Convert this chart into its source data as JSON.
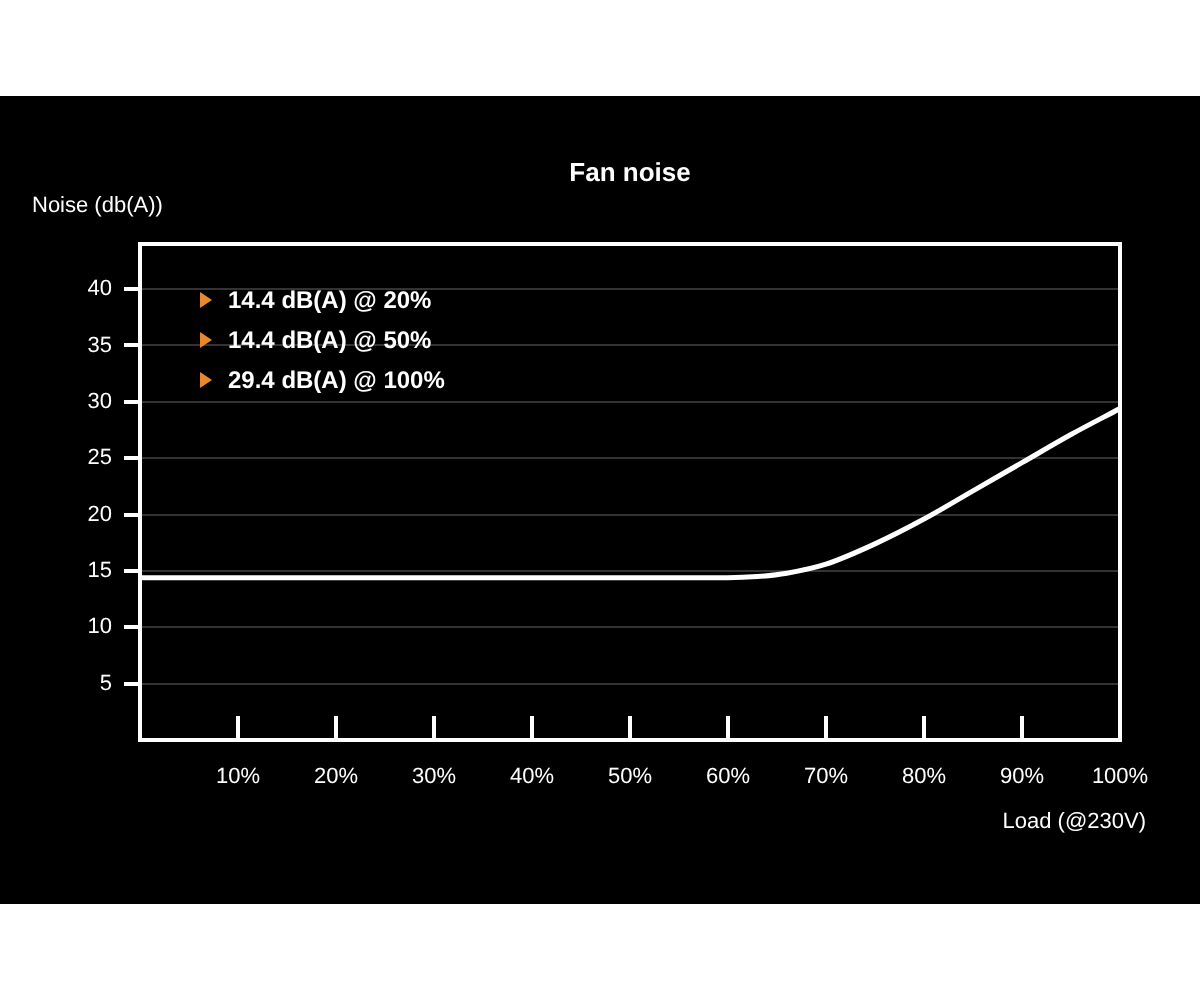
{
  "chart_data": {
    "type": "line",
    "title": "Fan noise",
    "xlabel": "Load (@230V)",
    "ylabel": "Noise (db(A))",
    "x": [
      0,
      10,
      20,
      30,
      40,
      50,
      60,
      63,
      66,
      70,
      75,
      80,
      85,
      90,
      95,
      100
    ],
    "values": [
      14.4,
      14.4,
      14.4,
      14.4,
      14.4,
      14.4,
      14.4,
      14.5,
      14.8,
      15.6,
      17.4,
      19.6,
      22.1,
      24.6,
      27.1,
      29.4
    ],
    "color": "#ffffff",
    "xlim": [
      0,
      100
    ],
    "xticks": [
      {
        "value": 10,
        "label": "10%"
      },
      {
        "value": 20,
        "label": "20%"
      },
      {
        "value": 30,
        "label": "30%"
      },
      {
        "value": 40,
        "label": "40%"
      },
      {
        "value": 50,
        "label": "50%"
      },
      {
        "value": 60,
        "label": "60%"
      },
      {
        "value": 70,
        "label": "70%"
      },
      {
        "value": 80,
        "label": "80%"
      },
      {
        "value": 90,
        "label": "90%"
      },
      {
        "value": 100,
        "label": "100%"
      }
    ],
    "ylim": [
      0,
      44
    ],
    "yticks": [
      5,
      10,
      15,
      20,
      25,
      30,
      35,
      40
    ],
    "grid": "y",
    "annotations": [
      "14.4 dB(A) @ 20%",
      "14.4 dB(A) @ 50%",
      "29.4 dB(A) @ 100%"
    ]
  }
}
